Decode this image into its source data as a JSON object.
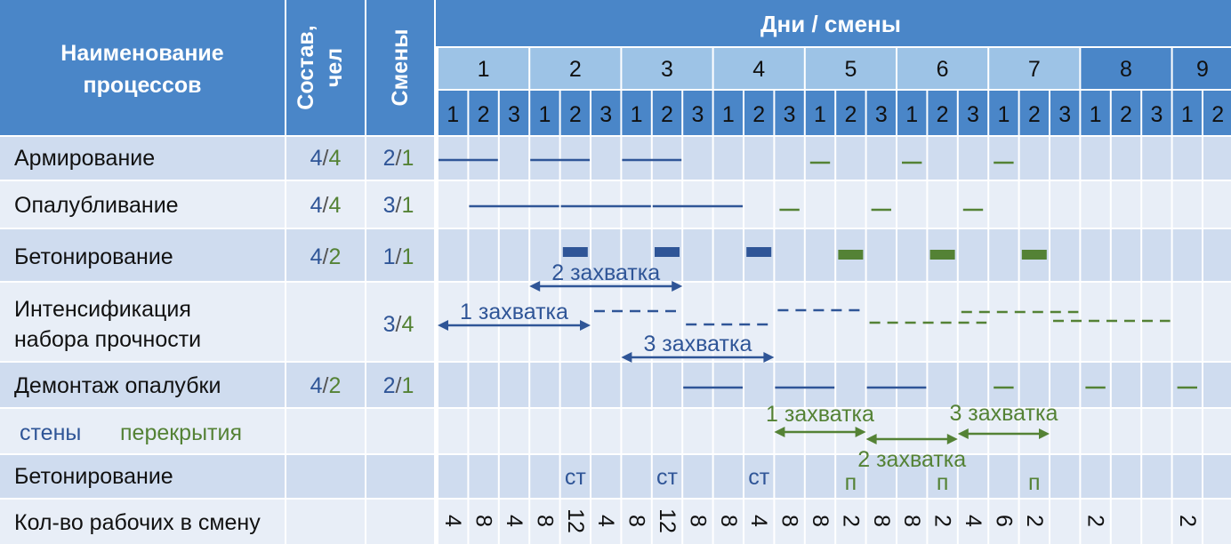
{
  "header": {
    "process_title_line1": "Наименование",
    "process_title_line2": "процессов",
    "crew_title_line1": "Состав,",
    "crew_title_line2": "чел",
    "shifts_title": "Смены",
    "days_title": "Дни / смены"
  },
  "days": [
    "1",
    "2",
    "3",
    "4",
    "5",
    "6",
    "7",
    "8",
    "9"
  ],
  "shift_numbers": [
    "1",
    "2",
    "3",
    "1",
    "2",
    "3",
    "1",
    "2",
    "3",
    "1",
    "2",
    "3",
    "1",
    "2",
    "3",
    "1",
    "2",
    "3",
    "1",
    "2",
    "3",
    "1",
    "2",
    "3",
    "1",
    "2"
  ],
  "rows": [
    {
      "name": "Армирование",
      "crew_walls": "4",
      "crew_floors": "4",
      "shifts_walls": "2",
      "shifts_floors": "1"
    },
    {
      "name": "Опалубливание",
      "crew_walls": "4",
      "crew_floors": "4",
      "shifts_walls": "3",
      "shifts_floors": "1"
    },
    {
      "name": "Бетонирование",
      "crew_walls": "4",
      "crew_floors": "2",
      "shifts_walls": "1",
      "shifts_floors": "1"
    },
    {
      "name_line1": "Интенсификация",
      "name_line2": "набора прочности",
      "crew_walls": "",
      "crew_floors": "",
      "shifts_walls": "3",
      "shifts_floors": "4"
    },
    {
      "name": "Демонтаж опалубки",
      "crew_walls": "4",
      "crew_floors": "2",
      "shifts_walls": "2",
      "shifts_floors": "1"
    }
  ],
  "legend": {
    "walls": "стены",
    "floors": "перекрытия"
  },
  "separator": "/",
  "concreting_row": {
    "label": "Бетонирование",
    "marks": [
      {
        "shift": 5,
        "text": "ст",
        "series": "walls"
      },
      {
        "shift": 8,
        "text": "ст",
        "series": "walls"
      },
      {
        "shift": 11,
        "text": "ст",
        "series": "walls"
      },
      {
        "shift": 14,
        "text": "п",
        "series": "floors"
      },
      {
        "shift": 17,
        "text": "п",
        "series": "floors"
      },
      {
        "shift": 20,
        "text": "п",
        "series": "floors"
      }
    ]
  },
  "workers_row": {
    "label": "Кол-во рабочих в смену",
    "values": [
      "4",
      "8",
      "4",
      "8",
      "12",
      "4",
      "8",
      "12",
      "8",
      "8",
      "4",
      "8",
      "8",
      "2",
      "8",
      "8",
      "2",
      "4",
      "6",
      "2",
      "",
      "2",
      "",
      "",
      "2",
      ""
    ]
  },
  "annotations": [
    {
      "text": "2 захватка",
      "series": "walls"
    },
    {
      "text": "1 захватка",
      "series": "walls"
    },
    {
      "text": "3 захватка",
      "series": "walls"
    },
    {
      "text": "1 захватка",
      "series": "floors"
    },
    {
      "text": "3 захватка",
      "series": "floors"
    },
    {
      "text": "2 захватка",
      "series": "floors"
    }
  ],
  "colors": {
    "walls": "#2f5597",
    "floors": "#548235",
    "header_dark": "#4a86c8",
    "header_light": "#9dc3e6",
    "row_dark": "#cfdcef",
    "row_light": "#e8eef7"
  },
  "chart_data": {
    "type": "gantt",
    "x_unit": "shift",
    "tasks": [
      {
        "process": "Армирование",
        "series": "walls",
        "start": 1,
        "end": 2
      },
      {
        "process": "Армирование",
        "series": "walls",
        "start": 4,
        "end": 5
      },
      {
        "process": "Армирование",
        "series": "walls",
        "start": 7,
        "end": 8
      },
      {
        "process": "Армирование",
        "series": "floors",
        "start": 13,
        "end": 13
      },
      {
        "process": "Армирование",
        "series": "floors",
        "start": 16,
        "end": 16
      },
      {
        "process": "Армирование",
        "series": "floors",
        "start": 19,
        "end": 19
      },
      {
        "process": "Опалубливание",
        "series": "walls",
        "start": 2,
        "end": 4
      },
      {
        "process": "Опалубливание",
        "series": "walls",
        "start": 5,
        "end": 7
      },
      {
        "process": "Опалубливание",
        "series": "walls",
        "start": 8,
        "end": 10
      },
      {
        "process": "Опалубливание",
        "series": "floors",
        "start": 12,
        "end": 12
      },
      {
        "process": "Опалубливание",
        "series": "floors",
        "start": 15,
        "end": 15
      },
      {
        "process": "Опалубливание",
        "series": "floors",
        "start": 18,
        "end": 18
      },
      {
        "process": "Бетонирование",
        "series": "walls",
        "start": 5,
        "end": 5
      },
      {
        "process": "Бетонирование",
        "series": "walls",
        "start": 8,
        "end": 8
      },
      {
        "process": "Бетонирование",
        "series": "walls",
        "start": 11,
        "end": 11
      },
      {
        "process": "Бетонирование",
        "series": "floors",
        "start": 14,
        "end": 14
      },
      {
        "process": "Бетонирование",
        "series": "floors",
        "start": 17,
        "end": 17
      },
      {
        "process": "Бетонирование",
        "series": "floors",
        "start": 20,
        "end": 20
      },
      {
        "process": "Интенсификация набора прочности",
        "series": "walls",
        "start": 6,
        "end": 8
      },
      {
        "process": "Интенсификация набора прочности",
        "series": "walls",
        "start": 9,
        "end": 11
      },
      {
        "process": "Интенсификация набора прочности",
        "series": "walls",
        "start": 12,
        "end": 14
      },
      {
        "process": "Интенсификация набора прочности",
        "series": "floors",
        "start": 15,
        "end": 18
      },
      {
        "process": "Интенсификация набора прочности",
        "series": "floors",
        "start": 18,
        "end": 21
      },
      {
        "process": "Интенсификация набора прочности",
        "series": "floors",
        "start": 21,
        "end": 24
      },
      {
        "process": "Демонтаж опалубки",
        "series": "walls",
        "start": 9,
        "end": 10
      },
      {
        "process": "Демонтаж опалубки",
        "series": "walls",
        "start": 12,
        "end": 13
      },
      {
        "process": "Демонтаж опалубки",
        "series": "walls",
        "start": 15,
        "end": 16
      },
      {
        "process": "Демонтаж опалубки",
        "series": "floors",
        "start": 19,
        "end": 19
      },
      {
        "process": "Демонтаж опалубки",
        "series": "floors",
        "start": 22,
        "end": 22
      },
      {
        "process": "Демонтаж опалубки",
        "series": "floors",
        "start": 25,
        "end": 25
      }
    ]
  }
}
